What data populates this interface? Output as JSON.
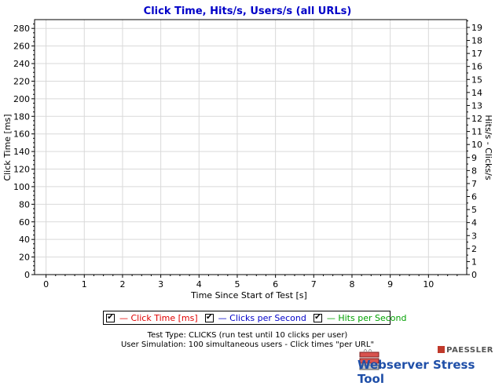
{
  "chart_data": {
    "type": "line",
    "title": "Click Time, Hits/s, Users/s (all URLs)",
    "xlabel": "Time Since Start of Test [s]",
    "ylabel_left": "Click Time [ms]",
    "ylabel_right": "Hits/s - Clicks/s",
    "x_ticks": [
      "0",
      "1",
      "2",
      "3",
      "4",
      "5",
      "6",
      "7",
      "8",
      "9",
      "10"
    ],
    "xlim": [
      -0.3,
      11
    ],
    "y_left_ticks": [
      "0",
      "20",
      "40",
      "60",
      "80",
      "100",
      "120",
      "140",
      "160",
      "180",
      "200",
      "220",
      "240",
      "260",
      "280"
    ],
    "ylim_left": [
      0,
      290
    ],
    "y_right_ticks": [
      "0",
      "1",
      "2",
      "3",
      "4",
      "5",
      "6",
      "7",
      "8",
      "9",
      "10",
      "11",
      "12",
      "13",
      "14",
      "15",
      "16",
      "17",
      "18",
      "19"
    ],
    "ylim_right": [
      0,
      19.6
    ],
    "grid": true,
    "series": [
      {
        "name": "Click Time [ms]",
        "color": "#e00000",
        "axis": "left",
        "values": []
      },
      {
        "name": "Clicks per Second",
        "color": "#0000c8",
        "axis": "right",
        "values": []
      },
      {
        "name": "Hits per Second",
        "color": "#00a000",
        "axis": "right",
        "values": []
      }
    ],
    "legend": {
      "placement": "bottom",
      "items": [
        {
          "label": "— Click Time [ms]",
          "color": "#e00000",
          "checked": true
        },
        {
          "label": "— Clicks per Second",
          "color": "#0000c8",
          "checked": true
        },
        {
          "label": "— Hits per Second",
          "color": "#00a000",
          "checked": true
        }
      ]
    }
  },
  "info": {
    "test_type": "Test Type: CLICKS (run test until 10 clicks per user)",
    "user_simulation": "User Simulation: 100 simultaneous users - Click times \"per URL\""
  },
  "logo": {
    "brand": "PAESSLER",
    "product": "Webserver Stress Tool",
    "icon": "server-stack-icon"
  }
}
